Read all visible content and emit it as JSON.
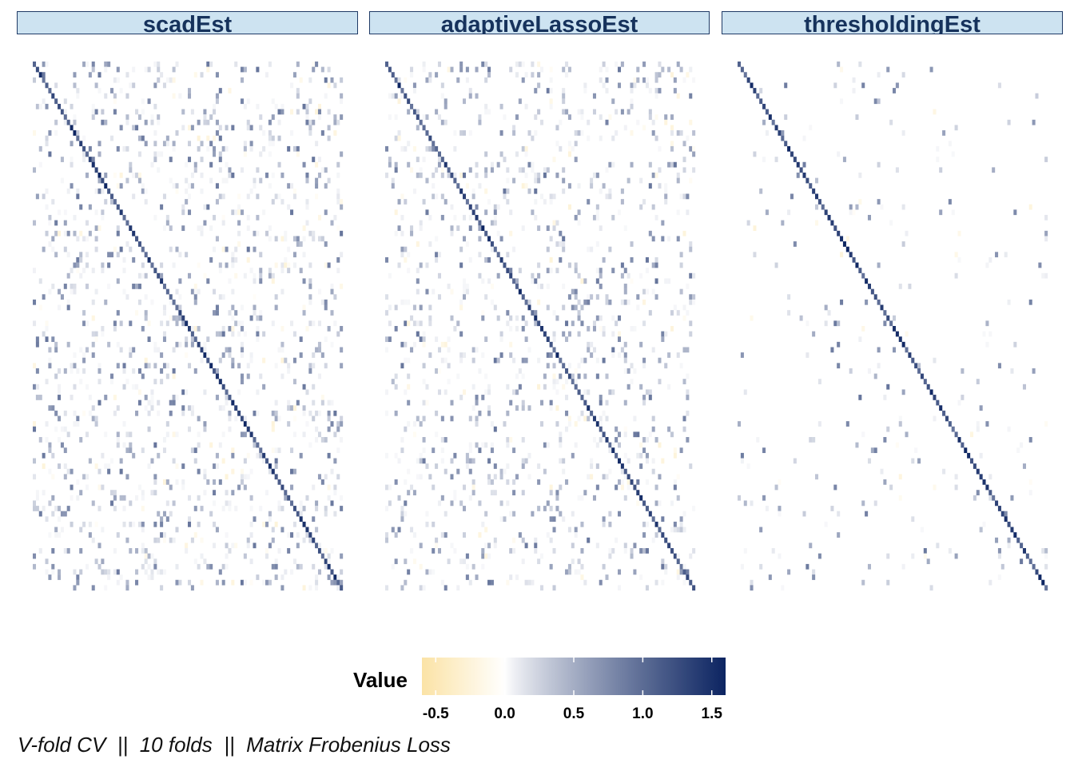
{
  "chart_data": {
    "type": "heatmap",
    "panels": [
      {
        "name": "scadEst",
        "n": 100,
        "offdiag_density": 0.14,
        "seed": 11
      },
      {
        "name": "adaptiveLassoEst",
        "n": 100,
        "offdiag_density": 0.12,
        "seed": 23
      },
      {
        "name": "thresholdingEst",
        "n": 100,
        "offdiag_density": 0.025,
        "seed": 37
      }
    ],
    "diagonal_value_range": [
      0.9,
      1.6
    ],
    "color_scale": {
      "title": "Value",
      "min": -0.6,
      "max": 1.6,
      "low_color": "#fbe3a6",
      "mid_color": "#ffffff",
      "high_color": "#0c2461",
      "ticks": [
        {
          "value": -0.5,
          "label": "-0.5"
        },
        {
          "value": 0.0,
          "label": "0.0"
        },
        {
          "value": 0.5,
          "label": "0.5"
        },
        {
          "value": 1.0,
          "label": "1.0"
        },
        {
          "value": 1.5,
          "label": "1.5"
        }
      ]
    },
    "caption": "V-fold CV  ||  10 folds  ||  Matrix Frobenius Loss"
  }
}
